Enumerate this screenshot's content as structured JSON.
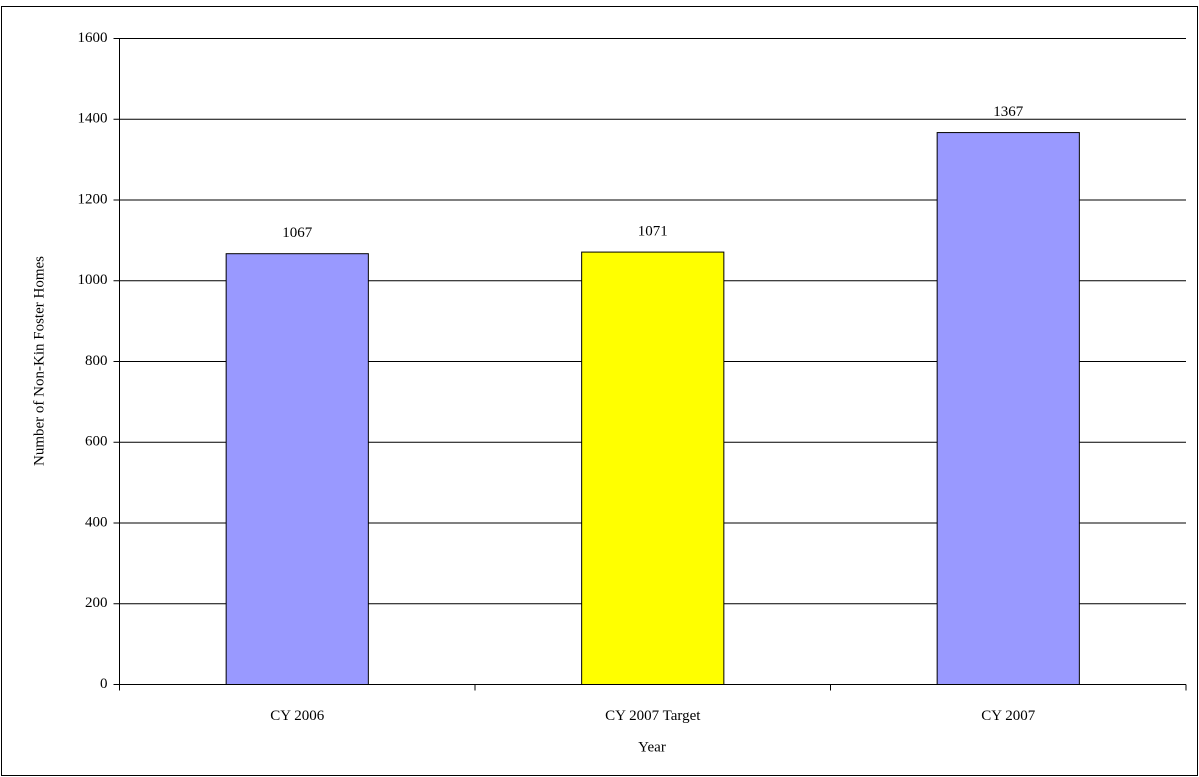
{
  "chart_data": {
    "type": "bar",
    "x_label": "Year",
    "y_label": "Number of Non-Kin Foster Homes",
    "categories": [
      "CY 2006",
      "CY 2007 Target",
      "CY 2007"
    ],
    "values": [
      1067,
      1071,
      1367
    ],
    "colors": [
      "#9999ff",
      "#ffff00",
      "#9999ff"
    ],
    "ylim": [
      0,
      1600
    ],
    "yticks": [
      0,
      200,
      400,
      600,
      800,
      1000,
      1200,
      1400,
      1600
    ],
    "grid": true
  }
}
